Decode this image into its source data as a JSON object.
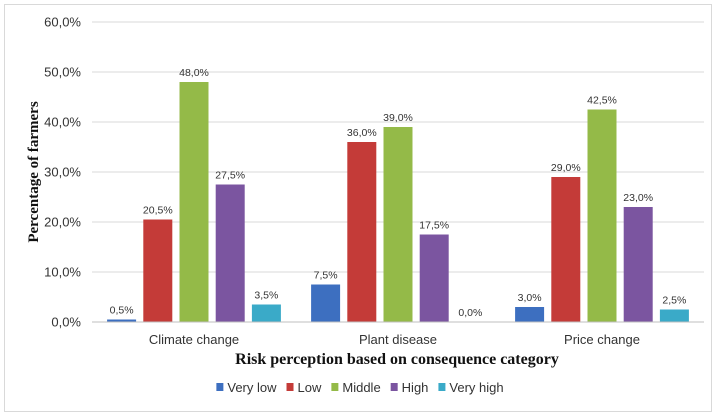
{
  "chart_data": {
    "type": "bar",
    "title": "",
    "xlabel": "Risk perception based on consequence category",
    "ylabel": "Percentage of farmers",
    "ylim": [
      0,
      60
    ],
    "yticks": [
      "0,0%",
      "10,0%",
      "20,0%",
      "30,0%",
      "40,0%",
      "50,0%",
      "60,0%"
    ],
    "grid": true,
    "legend_position": "bottom",
    "categories": [
      "Climate change",
      "Plant disease",
      "Price change"
    ],
    "series": [
      {
        "name": "Very low",
        "color": "#3d6fc0",
        "values": [
          0.5,
          7.5,
          3.0
        ],
        "labels": [
          "0,5%",
          "7,5%",
          "3,0%"
        ]
      },
      {
        "name": "Low",
        "color": "#c43b38",
        "values": [
          20.5,
          36.0,
          29.0
        ],
        "labels": [
          "20,5%",
          "36,0%",
          "29,0%"
        ]
      },
      {
        "name": "Middle",
        "color": "#94ba48",
        "values": [
          48.0,
          39.0,
          42.5
        ],
        "labels": [
          "48,0%",
          "39,0%",
          "42,5%"
        ]
      },
      {
        "name": "High",
        "color": "#7b55a0",
        "values": [
          27.5,
          17.5,
          23.0
        ],
        "labels": [
          "27,5%",
          "17,5%",
          "23,0%"
        ]
      },
      {
        "name": "Very high",
        "color": "#3aaac8",
        "values": [
          3.5,
          0.0,
          2.5
        ],
        "labels": [
          "3,5%",
          "0,0%",
          "2,5%"
        ]
      }
    ]
  }
}
